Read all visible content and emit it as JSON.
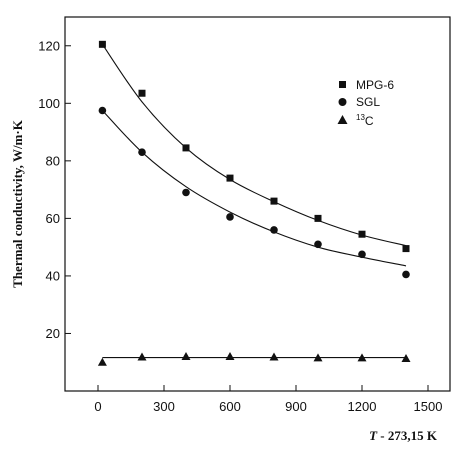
{
  "chart_data": {
    "type": "scatter",
    "title": "",
    "xlabel": "T - 273,15 K",
    "xlabel_italic_part": "T",
    "xlabel_rest": " - 273,15 K",
    "ylabel": "Thermal conductivity,  W/m·K",
    "xlim": [
      -150,
      1600
    ],
    "ylim": [
      0,
      130
    ],
    "xticks": [
      0,
      300,
      600,
      900,
      1200,
      1500
    ],
    "yticks": [
      20,
      40,
      60,
      80,
      100,
      120
    ],
    "grid": false,
    "legend_position": "top-right",
    "series": [
      {
        "name": "MPG-6",
        "marker": "square",
        "x": [
          20,
          200,
          400,
          600,
          800,
          1000,
          1200,
          1400
        ],
        "y": [
          120.5,
          103.5,
          84.5,
          74,
          66,
          60,
          54.5,
          49.5
        ],
        "fit": [
          120.5,
          100.5,
          84.5,
          73.5,
          65.8,
          59.3,
          54.2,
          50.5
        ]
      },
      {
        "name": "SGL",
        "marker": "circle",
        "x": [
          20,
          200,
          400,
          600,
          800,
          1000,
          1200,
          1400
        ],
        "y": [
          97.5,
          83,
          69,
          60.5,
          56,
          51,
          47.5,
          40.5
        ],
        "fit": [
          97.5,
          83,
          71,
          62.2,
          55.3,
          50,
          46.5,
          43.5
        ]
      },
      {
        "name": "13C",
        "name_sup": "13",
        "name_rest": "C",
        "marker": "triangle",
        "x": [
          20,
          200,
          400,
          600,
          800,
          1000,
          1200,
          1400
        ],
        "y": [
          10,
          11.8,
          12,
          12,
          11.8,
          11.5,
          11.5,
          11.3
        ],
        "fit": [
          11.6,
          11.6,
          11.6,
          11.6,
          11.6,
          11.6,
          11.6,
          11.6
        ]
      }
    ]
  }
}
